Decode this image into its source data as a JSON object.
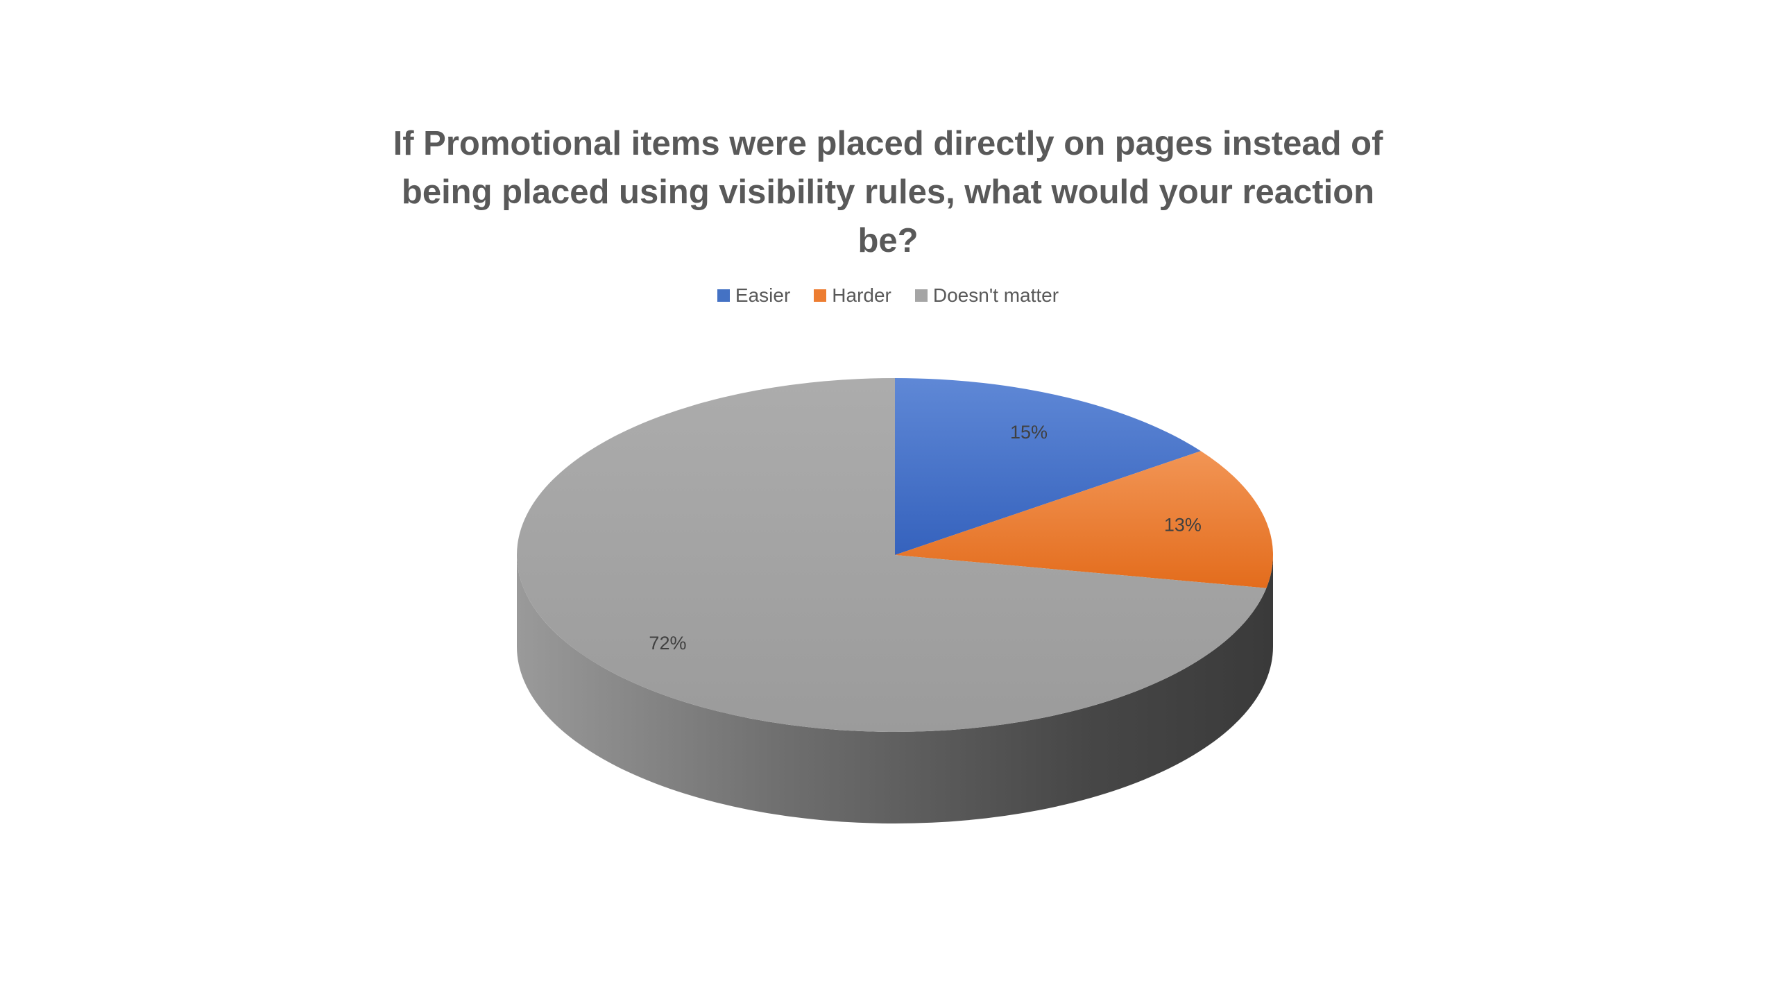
{
  "chart_data": {
    "type": "pie",
    "title": "If Promotional items were placed directly on pages instead of being placed using visibility rules, what would your reaction be?",
    "categories": [
      "Easier",
      "Harder",
      "Doesn't matter"
    ],
    "values": [
      15,
      13,
      72
    ],
    "data_labels": [
      "15%",
      "13%",
      "72%"
    ],
    "colors": [
      "#4472C4",
      "#ED7D31",
      "#A5A5A5"
    ],
    "legend_position": "top",
    "style": "3d"
  }
}
